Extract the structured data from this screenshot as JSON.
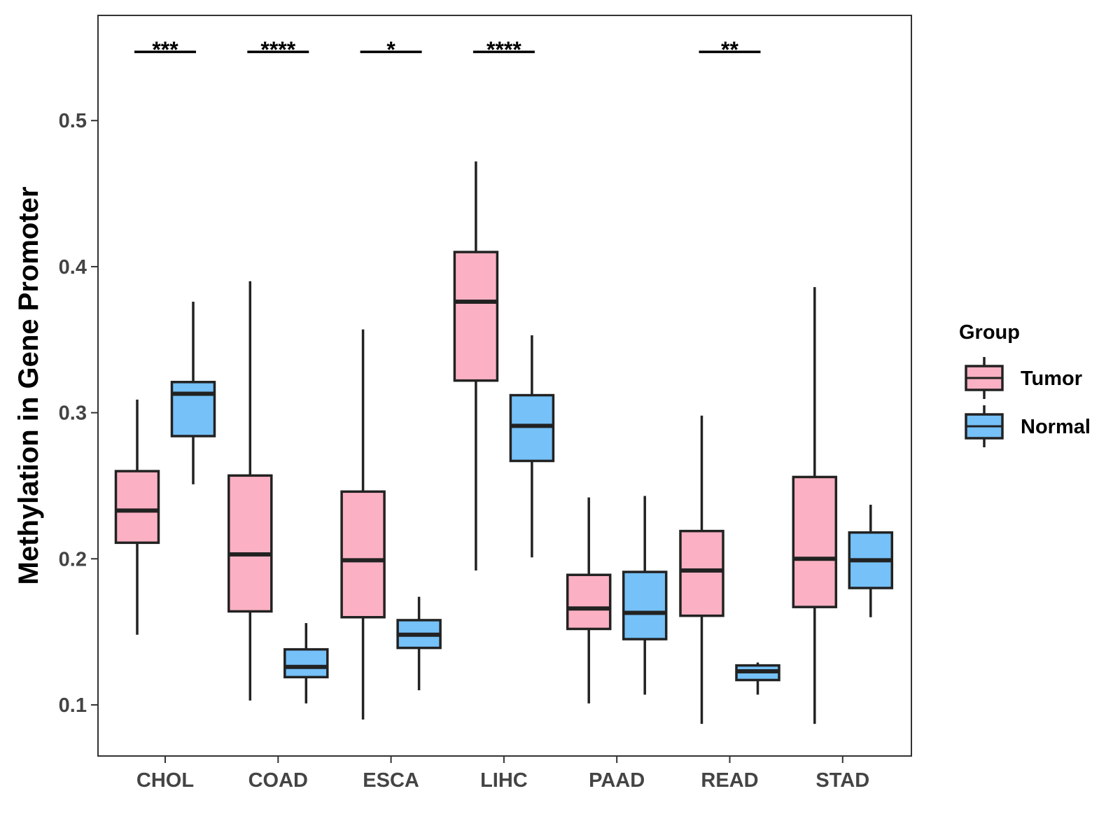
{
  "chart_data": {
    "type": "boxplot",
    "title": "",
    "xlabel": "",
    "ylabel": "Methylation in Gene Promoter",
    "ylim": [
      0.065,
      0.572
    ],
    "yticks": [
      0.1,
      0.2,
      0.3,
      0.4,
      0.5
    ],
    "ytick_labels": [
      "0.1",
      "0.2",
      "0.3",
      "0.4",
      "0.5"
    ],
    "categories": [
      "CHOL",
      "COAD",
      "ESCA",
      "LIHC",
      "PAAD",
      "READ",
      "STAD"
    ],
    "legend": {
      "title": "Group",
      "position": "right",
      "entries": [
        {
          "name": "Tumor",
          "color": "#FBB1C3"
        },
        {
          "name": "Normal",
          "color": "#75C1F8"
        }
      ]
    },
    "series": [
      {
        "name": "Tumor",
        "color": "#FBB1C3",
        "boxes": [
          {
            "category": "CHOL",
            "whisker_low": 0.148,
            "q1": 0.211,
            "median": 0.233,
            "q3": 0.26,
            "whisker_high": 0.309
          },
          {
            "category": "COAD",
            "whisker_low": 0.103,
            "q1": 0.164,
            "median": 0.203,
            "q3": 0.257,
            "whisker_high": 0.39
          },
          {
            "category": "ESCA",
            "whisker_low": 0.09,
            "q1": 0.16,
            "median": 0.199,
            "q3": 0.246,
            "whisker_high": 0.357
          },
          {
            "category": "LIHC",
            "whisker_low": 0.192,
            "q1": 0.322,
            "median": 0.376,
            "q3": 0.41,
            "whisker_high": 0.472
          },
          {
            "category": "PAAD",
            "whisker_low": 0.101,
            "q1": 0.152,
            "median": 0.166,
            "q3": 0.189,
            "whisker_high": 0.242
          },
          {
            "category": "READ",
            "whisker_low": 0.087,
            "q1": 0.161,
            "median": 0.192,
            "q3": 0.219,
            "whisker_high": 0.298
          },
          {
            "category": "STAD",
            "whisker_low": 0.087,
            "q1": 0.167,
            "median": 0.2,
            "q3": 0.256,
            "whisker_high": 0.386
          }
        ]
      },
      {
        "name": "Normal",
        "color": "#75C1F8",
        "boxes": [
          {
            "category": "CHOL",
            "whisker_low": 0.251,
            "q1": 0.284,
            "median": 0.313,
            "q3": 0.321,
            "whisker_high": 0.376
          },
          {
            "category": "COAD",
            "whisker_low": 0.101,
            "q1": 0.119,
            "median": 0.126,
            "q3": 0.138,
            "whisker_high": 0.156
          },
          {
            "category": "ESCA",
            "whisker_low": 0.11,
            "q1": 0.139,
            "median": 0.148,
            "q3": 0.158,
            "whisker_high": 0.174
          },
          {
            "category": "LIHC",
            "whisker_low": 0.201,
            "q1": 0.267,
            "median": 0.291,
            "q3": 0.312,
            "whisker_high": 0.353
          },
          {
            "category": "PAAD",
            "whisker_low": 0.107,
            "q1": 0.145,
            "median": 0.163,
            "q3": 0.191,
            "whisker_high": 0.243
          },
          {
            "category": "READ",
            "whisker_low": 0.107,
            "q1": 0.117,
            "median": 0.123,
            "q3": 0.127,
            "whisker_high": 0.129
          },
          {
            "category": "STAD",
            "whisker_low": 0.16,
            "q1": 0.18,
            "median": 0.199,
            "q3": 0.218,
            "whisker_high": 0.237
          }
        ]
      }
    ],
    "significance": [
      {
        "category": "CHOL",
        "label": "***"
      },
      {
        "category": "COAD",
        "label": "****"
      },
      {
        "category": "ESCA",
        "label": "*"
      },
      {
        "category": "LIHC",
        "label": "****"
      },
      {
        "category": "READ",
        "label": "**"
      }
    ],
    "significance_level": 0.547
  }
}
